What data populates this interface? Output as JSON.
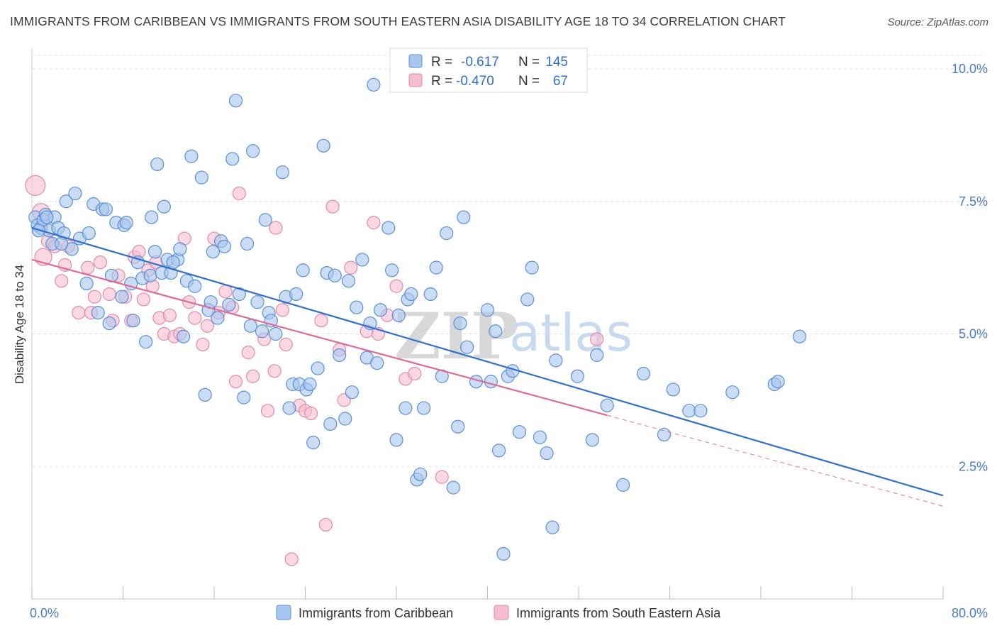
{
  "title": "IMMIGRANTS FROM CARIBBEAN VS IMMIGRANTS FROM SOUTH EASTERN ASIA DISABILITY AGE 18 TO 34 CORRELATION CHART",
  "source": "Source: ZipAtlas.com",
  "watermark": {
    "zip": "ZIP",
    "atlas": "atlas"
  },
  "colors": {
    "blue_fill": "#a8c6ee",
    "blue_stroke": "#5a8fd8",
    "blue_line": "#2f6fcf",
    "pink_fill": "#f5bed0",
    "pink_stroke": "#e28aab",
    "pink_line": "#e06a95",
    "grid": "#e3e3e3",
    "axis_label": "#4a7cc9"
  },
  "legend": {
    "rows": [
      {
        "r_label": "R =",
        "r_value": "-0.617",
        "n_label": "N =",
        "n_value": "145"
      },
      {
        "r_label": "R =",
        "r_value": "-0.470",
        "n_label": "N =",
        "n_value": "67"
      }
    ]
  },
  "chart_data": {
    "type": "scatter",
    "xlabel": "",
    "ylabel": "Disability Age 18 to 34",
    "xlim": [
      0,
      80
    ],
    "ylim": [
      0,
      10.5
    ],
    "x_tick_labels": [
      "0.0%",
      "80.0%"
    ],
    "y_ticks": [
      {
        "value": 10.0,
        "label": "10.0%"
      },
      {
        "value": 7.5,
        "label": "7.5%"
      },
      {
        "value": 5.0,
        "label": "5.0%"
      },
      {
        "value": 2.5,
        "label": "2.5%"
      }
    ],
    "grid": true,
    "legend_position": "top-center",
    "series": [
      {
        "name": "Immigrants from Caribbean",
        "color": "#a8c6ee",
        "regression": {
          "x_start": 0,
          "y_start": 7.0,
          "x_end": 80,
          "y_end": 1.95,
          "solid_until": 80
        },
        "points": [
          [
            0.3,
            7.2
          ],
          [
            0.5,
            7.05
          ],
          [
            0.8,
            7.0
          ],
          [
            1.0,
            7.15
          ],
          [
            1.2,
            7.25
          ],
          [
            1.5,
            6.95
          ],
          [
            1.8,
            6.7
          ],
          [
            2.0,
            7.2
          ],
          [
            2.3,
            7.0
          ],
          [
            2.8,
            6.9
          ],
          [
            3.0,
            7.5
          ],
          [
            3.5,
            6.6
          ],
          [
            3.8,
            7.65
          ],
          [
            4.2,
            6.8
          ],
          [
            4.8,
            5.95
          ],
          [
            5.0,
            6.9
          ],
          [
            5.4,
            7.45
          ],
          [
            5.8,
            5.4
          ],
          [
            6.2,
            7.35
          ],
          [
            6.5,
            7.35
          ],
          [
            6.8,
            5.2
          ],
          [
            7.0,
            6.1
          ],
          [
            7.4,
            7.1
          ],
          [
            7.9,
            5.7
          ],
          [
            8.1,
            7.05
          ],
          [
            8.3,
            7.1
          ],
          [
            8.7,
            5.95
          ],
          [
            8.9,
            5.25
          ],
          [
            9.3,
            6.35
          ],
          [
            9.7,
            6.05
          ],
          [
            10.0,
            4.85
          ],
          [
            10.4,
            6.1
          ],
          [
            10.5,
            7.2
          ],
          [
            10.8,
            6.55
          ],
          [
            11.0,
            8.2
          ],
          [
            11.4,
            6.15
          ],
          [
            11.6,
            7.4
          ],
          [
            11.9,
            6.4
          ],
          [
            12.2,
            6.15
          ],
          [
            12.8,
            6.4
          ],
          [
            13.0,
            6.6
          ],
          [
            13.3,
            4.95
          ],
          [
            13.6,
            6.0
          ],
          [
            14.0,
            8.35
          ],
          [
            14.3,
            5.9
          ],
          [
            14.9,
            7.95
          ],
          [
            15.2,
            3.85
          ],
          [
            15.5,
            5.45
          ],
          [
            15.7,
            5.6
          ],
          [
            15.9,
            6.55
          ],
          [
            16.3,
            5.3
          ],
          [
            16.6,
            6.75
          ],
          [
            16.9,
            6.65
          ],
          [
            17.3,
            5.55
          ],
          [
            17.6,
            8.3
          ],
          [
            17.9,
            9.4
          ],
          [
            18.2,
            5.75
          ],
          [
            18.6,
            3.8
          ],
          [
            18.9,
            6.7
          ],
          [
            19.2,
            5.15
          ],
          [
            19.4,
            8.45
          ],
          [
            19.8,
            5.6
          ],
          [
            20.2,
            5.05
          ],
          [
            20.5,
            7.15
          ],
          [
            20.8,
            5.4
          ],
          [
            21.0,
            5.25
          ],
          [
            21.4,
            5.0
          ],
          [
            22.0,
            8.05
          ],
          [
            22.3,
            5.7
          ],
          [
            22.6,
            3.6
          ],
          [
            22.9,
            4.05
          ],
          [
            23.2,
            5.75
          ],
          [
            23.5,
            4.05
          ],
          [
            23.8,
            6.2
          ],
          [
            24.1,
            3.95
          ],
          [
            24.4,
            4.05
          ],
          [
            24.7,
            2.95
          ],
          [
            25.1,
            4.35
          ],
          [
            25.6,
            8.55
          ],
          [
            25.9,
            6.15
          ],
          [
            26.2,
            3.3
          ],
          [
            26.6,
            6.1
          ],
          [
            27.0,
            4.6
          ],
          [
            27.5,
            3.4
          ],
          [
            27.8,
            6.0
          ],
          [
            28.1,
            3.9
          ],
          [
            28.5,
            5.5
          ],
          [
            29.0,
            6.4
          ],
          [
            29.4,
            4.55
          ],
          [
            29.7,
            5.2
          ],
          [
            30.0,
            9.7
          ],
          [
            30.3,
            4.45
          ],
          [
            30.6,
            5.45
          ],
          [
            31.3,
            7.0
          ],
          [
            31.6,
            6.2
          ],
          [
            32.0,
            3.0
          ],
          [
            32.2,
            5.35
          ],
          [
            32.8,
            3.6
          ],
          [
            33.0,
            5.65
          ],
          [
            33.3,
            5.75
          ],
          [
            33.8,
            2.25
          ],
          [
            34.1,
            2.35
          ],
          [
            34.4,
            3.6
          ],
          [
            35.0,
            5.75
          ],
          [
            35.5,
            6.25
          ],
          [
            36.0,
            4.2
          ],
          [
            36.4,
            6.9
          ],
          [
            37.0,
            2.1
          ],
          [
            37.4,
            3.25
          ],
          [
            37.6,
            5.2
          ],
          [
            37.9,
            7.2
          ],
          [
            38.2,
            4.75
          ],
          [
            39.0,
            4.1
          ],
          [
            40.0,
            5.45
          ],
          [
            40.3,
            4.1
          ],
          [
            40.7,
            5.05
          ],
          [
            41.0,
            2.8
          ],
          [
            41.4,
            0.85
          ],
          [
            41.8,
            4.2
          ],
          [
            42.2,
            4.3
          ],
          [
            42.8,
            3.15
          ],
          [
            43.5,
            5.65
          ],
          [
            43.9,
            6.25
          ],
          [
            44.6,
            3.05
          ],
          [
            45.2,
            2.75
          ],
          [
            45.7,
            1.35
          ],
          [
            46.0,
            4.5
          ],
          [
            47.9,
            4.2
          ],
          [
            49.2,
            3.0
          ],
          [
            49.6,
            4.6
          ],
          [
            50.5,
            3.65
          ],
          [
            51.9,
            2.15
          ],
          [
            53.7,
            4.25
          ],
          [
            55.5,
            3.1
          ],
          [
            56.3,
            3.95
          ],
          [
            57.7,
            3.55
          ],
          [
            58.7,
            3.55
          ],
          [
            61.5,
            3.9
          ],
          [
            65.2,
            4.05
          ],
          [
            65.5,
            4.1
          ],
          [
            67.4,
            4.95
          ],
          [
            0.6,
            6.95
          ],
          [
            1.3,
            7.2
          ],
          [
            2.6,
            6.7
          ],
          [
            12.4,
            6.35
          ]
        ]
      },
      {
        "name": "Immigrants from South Eastern Asia",
        "color": "#f5bed0",
        "regression": {
          "x_start": 0,
          "y_start": 6.4,
          "x_end": 80,
          "y_end": 1.75,
          "solid_until": 50.5
        },
        "points": [
          [
            0.3,
            7.8
          ],
          [
            0.8,
            7.3
          ],
          [
            1.0,
            6.45
          ],
          [
            1.4,
            6.75
          ],
          [
            2.0,
            6.65
          ],
          [
            2.6,
            6.0
          ],
          [
            2.9,
            6.3
          ],
          [
            3.2,
            6.65
          ],
          [
            4.1,
            5.4
          ],
          [
            4.9,
            6.25
          ],
          [
            5.2,
            5.4
          ],
          [
            5.5,
            5.7
          ],
          [
            6.0,
            6.35
          ],
          [
            6.8,
            5.75
          ],
          [
            7.1,
            5.25
          ],
          [
            7.6,
            6.1
          ],
          [
            8.2,
            5.7
          ],
          [
            8.7,
            5.25
          ],
          [
            9.0,
            6.45
          ],
          [
            9.4,
            6.55
          ],
          [
            9.8,
            5.65
          ],
          [
            10.2,
            6.2
          ],
          [
            10.6,
            5.9
          ],
          [
            10.9,
            6.35
          ],
          [
            11.2,
            5.3
          ],
          [
            11.6,
            5.0
          ],
          [
            12.1,
            5.35
          ],
          [
            12.5,
            4.95
          ],
          [
            13.0,
            5.0
          ],
          [
            13.4,
            6.8
          ],
          [
            13.8,
            5.6
          ],
          [
            14.3,
            5.3
          ],
          [
            15.0,
            4.8
          ],
          [
            15.4,
            5.15
          ],
          [
            16.0,
            6.8
          ],
          [
            16.4,
            5.4
          ],
          [
            17.0,
            5.8
          ],
          [
            17.6,
            5.5
          ],
          [
            17.9,
            4.1
          ],
          [
            18.2,
            7.65
          ],
          [
            19.0,
            4.65
          ],
          [
            19.4,
            4.2
          ],
          [
            20.4,
            4.9
          ],
          [
            20.7,
            3.55
          ],
          [
            21.3,
            4.3
          ],
          [
            21.4,
            7.0
          ],
          [
            22.0,
            5.45
          ],
          [
            22.3,
            4.8
          ],
          [
            22.8,
            0.75
          ],
          [
            23.5,
            3.65
          ],
          [
            24.0,
            3.55
          ],
          [
            24.5,
            3.5
          ],
          [
            25.4,
            5.25
          ],
          [
            25.8,
            1.4
          ],
          [
            26.4,
            7.4
          ],
          [
            27.0,
            4.7
          ],
          [
            27.4,
            3.75
          ],
          [
            28.0,
            6.25
          ],
          [
            29.4,
            5.05
          ],
          [
            30.0,
            7.1
          ],
          [
            30.4,
            5.0
          ],
          [
            31.2,
            5.35
          ],
          [
            32.0,
            5.9
          ],
          [
            32.8,
            4.15
          ],
          [
            33.6,
            4.25
          ],
          [
            36.0,
            2.3
          ],
          [
            49.6,
            4.9
          ]
        ]
      }
    ]
  }
}
